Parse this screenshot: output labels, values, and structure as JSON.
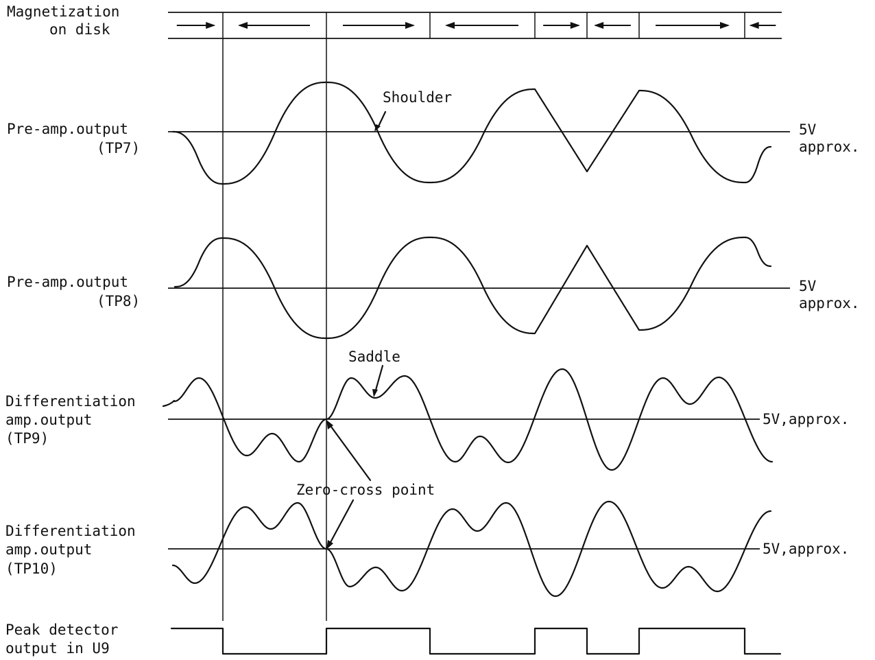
{
  "labels": {
    "magnetization_line1": "Magnetization",
    "magnetization_line2": "on disk",
    "tp7_line1": "Pre-amp.output",
    "tp7_line2": "(TP7)",
    "tp8_line1": "Pre-amp.output",
    "tp8_line2": "(TP8)",
    "tp9_line1": "Differentiation",
    "tp9_line2": "amp.output",
    "tp9_line3": "(TP9)",
    "tp10_line1": "Differentiation",
    "tp10_line2": "amp.output",
    "tp10_line3": "(TP10)",
    "peak_line1": "Peak detector",
    "peak_line2": "output in U9"
  },
  "levels": {
    "tp7_line1": "5V",
    "tp7_line2": "approx.",
    "tp8_line1": "5V",
    "tp8_line2": "approx.",
    "tp9": "5V,approx.",
    "tp10": "5V,approx."
  },
  "annotations": {
    "shoulder": "Shoulder",
    "saddle": "Saddle",
    "zero_cross": "Zero-cross point"
  },
  "magnetization_arrows": [
    "right",
    "left",
    "right",
    "left",
    "right",
    "left",
    "right",
    "left"
  ]
}
